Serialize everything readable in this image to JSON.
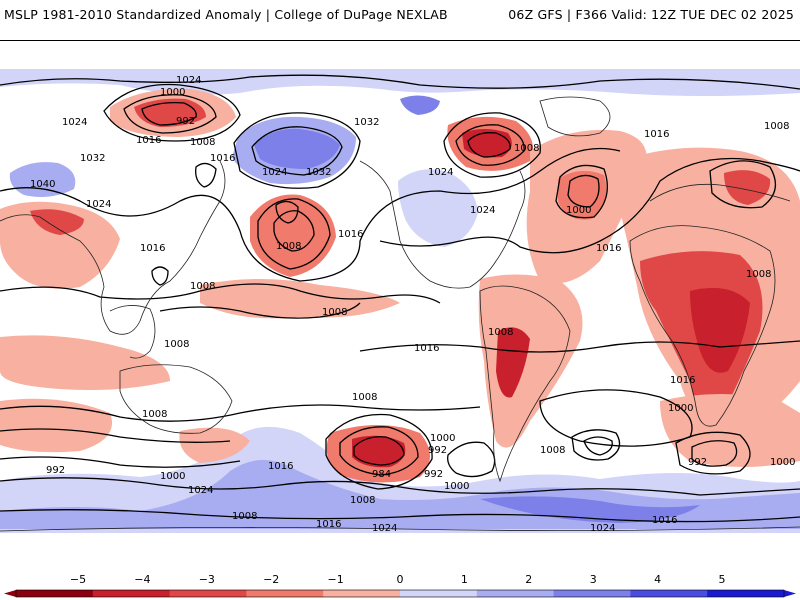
{
  "header": {
    "left_title": "MSLP 1981-2010 Standardized Anomaly | College of DuPage NEXLAB",
    "right_title": "06Z GFS | F366 Valid: 12Z TUE DEC 02 2025"
  },
  "map": {
    "variable": "MSLP standardized anomaly",
    "contour_labels": [
      "1024",
      "1000",
      "992",
      "1016",
      "1008",
      "1032",
      "1024",
      "1040",
      "1024",
      "1032",
      "1024",
      "1032",
      "1016",
      "1024",
      "1024",
      "1016",
      "1008",
      "1016",
      "1000",
      "1008",
      "1008",
      "1008",
      "1008",
      "1016",
      "1008",
      "1008",
      "1000",
      "992",
      "984",
      "992",
      "1000",
      "1008",
      "1008",
      "992",
      "1016",
      "1000",
      "1024",
      "1008",
      "1016",
      "1024",
      "1008",
      "1016",
      "1000",
      "1016",
      "1016",
      "1008",
      "1008",
      "1024",
      "1016",
      "992",
      "1000"
    ]
  },
  "colors": {
    "neg5": "#8b0010",
    "neg4": "#c8202c",
    "neg3": "#e04848",
    "neg2": "#f07a6c",
    "neg1": "#f8b0a0",
    "zero": "#ffffff",
    "pos1": "#d2d4f8",
    "pos2": "#a8acf0",
    "pos3": "#7c80e8",
    "pos4": "#4a4ee0",
    "pos5": "#1a1ad0"
  },
  "colorbar": {
    "ticks": [
      "−5",
      "−4",
      "−3",
      "−2",
      "−1",
      "0",
      "1",
      "2",
      "3",
      "4",
      "5"
    ]
  }
}
